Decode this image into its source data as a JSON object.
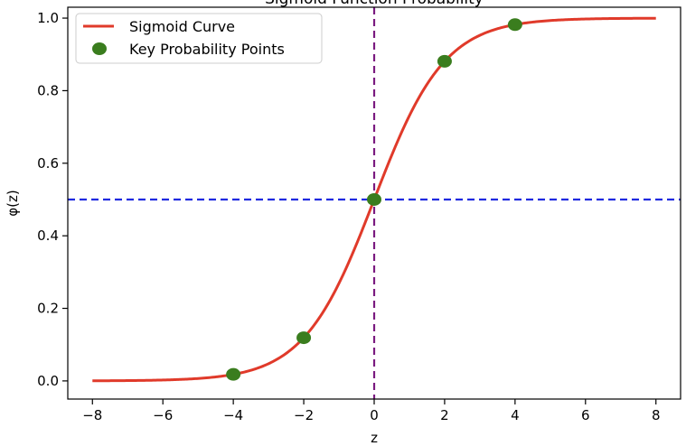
{
  "chart_data": {
    "type": "line",
    "title": "Sigmoid Function Probability",
    "xlabel": "z",
    "ylabel": "φ(z)",
    "xlim": [
      -8.7,
      8.7
    ],
    "ylim": [
      -0.05,
      1.03
    ],
    "xticks": [
      -8,
      -6,
      -4,
      -2,
      0,
      2,
      4,
      6,
      8
    ],
    "xtick_labels": [
      "−8",
      "−6",
      "−4",
      "−2",
      "0",
      "2",
      "4",
      "6",
      "8"
    ],
    "yticks": [
      0.0,
      0.2,
      0.4,
      0.6,
      0.8,
      1.0
    ],
    "ytick_labels": [
      "0.0",
      "0.2",
      "0.4",
      "0.6",
      "0.8",
      "1.0"
    ],
    "grid": false,
    "legend_position": "top-left",
    "series": [
      {
        "name": "Sigmoid Curve",
        "kind": "line",
        "color": "#e03a2a",
        "x_range": [
          -8,
          8
        ],
        "function": "sigmoid"
      },
      {
        "name": "Key Probability Points",
        "kind": "scatter",
        "color": "#3a7d1e",
        "x": [
          -4,
          -2,
          0,
          2,
          4
        ],
        "y": [
          0.018,
          0.119,
          0.5,
          0.881,
          0.982
        ]
      }
    ],
    "reference_lines": [
      {
        "orientation": "horizontal",
        "value": 0.5,
        "color": "#1f2ae0",
        "style": "dashed"
      },
      {
        "orientation": "vertical",
        "value": 0,
        "color": "#7a1a80",
        "style": "dashed"
      }
    ]
  }
}
